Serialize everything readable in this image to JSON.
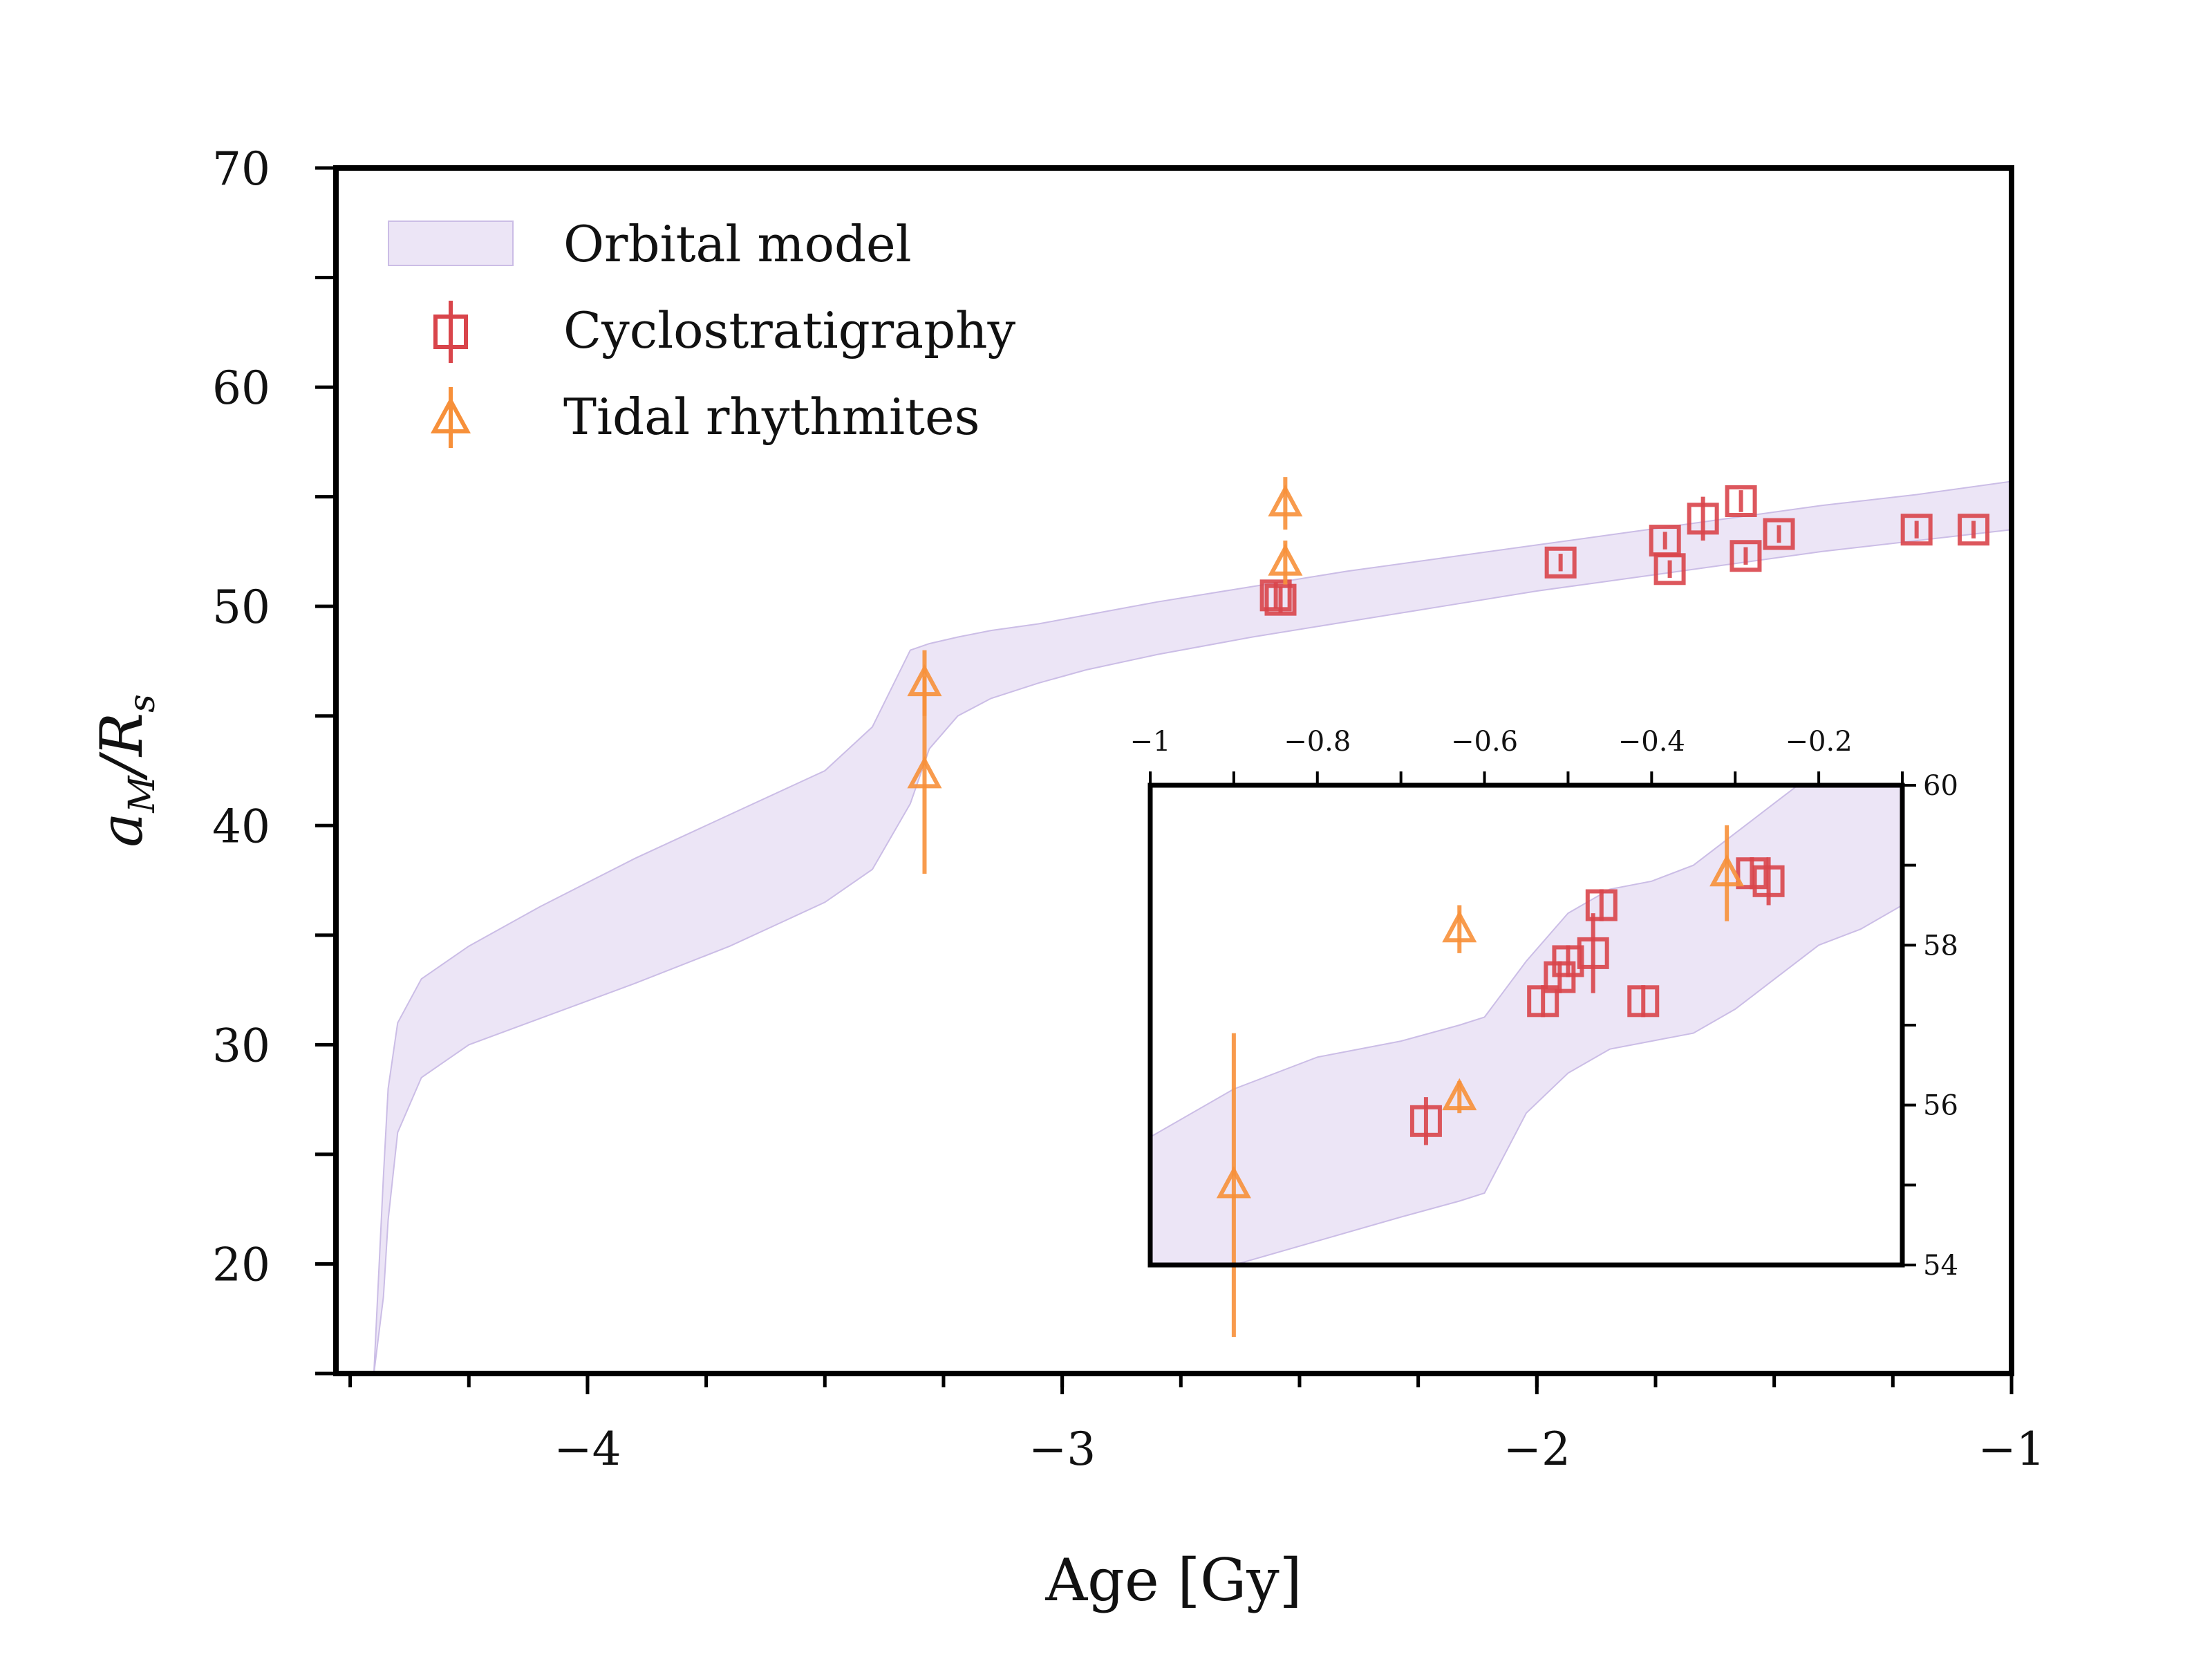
{
  "chart_data": {
    "type": "scatter",
    "xlabel": "Age [Gy]",
    "ylabel_main": "a",
    "ylabel_sub": "M",
    "ylabel_tail": "/R",
    "ylabel_tail_sub": "s",
    "xlim": [
      -4.53,
      -1.0
    ],
    "ylim": [
      15,
      70
    ],
    "x_ticks": [
      -4,
      -3,
      -2,
      -1
    ],
    "x_tick_labels": [
      "−4",
      "−3",
      "−2",
      "−1"
    ],
    "y_ticks": [
      20,
      30,
      40,
      50,
      60,
      70
    ],
    "y_tick_labels": [
      "20",
      "30",
      "40",
      "50",
      "60",
      "70"
    ],
    "x_minor_step": 0.25,
    "y_minor_step": 5,
    "colors": {
      "band": "#dcd0ee",
      "band_edge": "#cbbde6",
      "cyclo": "#d9454b",
      "tidal": "#f7903a",
      "axis": "#000000"
    },
    "legend": {
      "position": "upper-left",
      "entries": [
        {
          "label": "Orbital model",
          "kind": "band"
        },
        {
          "label": "Cyclostratigraphy",
          "kind": "cyclo"
        },
        {
          "label": "Tidal rhythmites",
          "kind": "tidal"
        }
      ]
    },
    "series": [
      {
        "name": "Orbital model",
        "kind": "band",
        "x": [
          -4.45,
          -4.43,
          -4.42,
          -4.4,
          -4.35,
          -4.25,
          -4.1,
          -3.9,
          -3.7,
          -3.5,
          -3.4,
          -3.32,
          -3.28,
          -3.22,
          -3.15,
          -3.05,
          -2.95,
          -2.8,
          -2.6,
          -2.4,
          -2.2,
          -2.0,
          -1.8,
          -1.6,
          -1.4,
          -1.2,
          -1.0
        ],
        "lower": [
          15.0,
          18.5,
          22.0,
          26.0,
          28.5,
          30.0,
          31.2,
          32.8,
          34.5,
          36.5,
          38.0,
          41.0,
          43.5,
          45.0,
          45.8,
          46.5,
          47.1,
          47.8,
          48.6,
          49.3,
          50.0,
          50.7,
          51.3,
          51.9,
          52.5,
          53.0,
          53.5
        ],
        "upper": [
          15.0,
          24.0,
          28.0,
          31.0,
          33.0,
          34.5,
          36.3,
          38.5,
          40.5,
          42.5,
          44.5,
          48.0,
          48.3,
          48.6,
          48.9,
          49.2,
          49.6,
          50.2,
          50.9,
          51.6,
          52.2,
          52.8,
          53.4,
          54.0,
          54.6,
          55.1,
          55.7
        ]
      },
      {
        "name": "Cyclostratigraphy",
        "kind": "cyclo",
        "points": [
          {
            "x": -2.55,
            "y": 50.5,
            "err": 0.6
          },
          {
            "x": -2.54,
            "y": 50.3,
            "err": 0.6
          },
          {
            "x": -1.95,
            "y": 52.0,
            "err": 0.4
          },
          {
            "x": -1.73,
            "y": 53.0,
            "err": 0.4
          },
          {
            "x": -1.72,
            "y": 51.7,
            "err": 0.4
          },
          {
            "x": -1.65,
            "y": 54.0,
            "err": 1.0
          },
          {
            "x": -1.57,
            "y": 54.8,
            "err": 0.5
          },
          {
            "x": -1.56,
            "y": 52.3,
            "err": 0.4
          },
          {
            "x": -1.49,
            "y": 53.3,
            "err": 0.4
          },
          {
            "x": -1.2,
            "y": 53.5,
            "err": 0.4
          },
          {
            "x": -1.08,
            "y": 53.5,
            "err": 0.4
          }
        ]
      },
      {
        "name": "Tidal rhythmites",
        "kind": "tidal",
        "points": [
          {
            "x": -3.29,
            "y": 46.5,
            "err": 1.5
          },
          {
            "x": -3.29,
            "y": 42.3,
            "err": 4.5
          },
          {
            "x": -2.53,
            "y": 54.7,
            "err": 1.2
          },
          {
            "x": -2.53,
            "y": 52.0,
            "err": 1.0
          }
        ]
      }
    ],
    "inset": {
      "xlim": [
        -1.0,
        -0.1
      ],
      "ylim": [
        54,
        60
      ],
      "x_ticks": [
        -1.0,
        -0.8,
        -0.6,
        -0.4,
        -0.2
      ],
      "x_tick_labels": [
        "−1",
        "−0.8",
        "−0.6",
        "−0.4",
        "−0.2"
      ],
      "y_ticks": [
        54,
        56,
        58,
        60
      ],
      "y_tick_labels": [
        "54",
        "56",
        "58",
        "60"
      ],
      "x_minor_step": 0.1,
      "y_minor_step": 1,
      "band": {
        "x": [
          -1.0,
          -0.9,
          -0.8,
          -0.7,
          -0.63,
          -0.6,
          -0.55,
          -0.5,
          -0.45,
          -0.4,
          -0.35,
          -0.3,
          -0.25,
          -0.2,
          -0.15,
          -0.1
        ],
        "lower": [
          53.6,
          54.0,
          54.3,
          54.6,
          54.8,
          54.9,
          55.9,
          56.4,
          56.7,
          56.8,
          56.9,
          57.2,
          57.6,
          58.0,
          58.2,
          58.5
        ],
        "upper": [
          55.6,
          56.2,
          56.6,
          56.8,
          57.0,
          57.1,
          57.8,
          58.4,
          58.7,
          58.8,
          59.0,
          59.4,
          59.8,
          60.2,
          60.5,
          60.8
        ]
      },
      "cyclo": [
        {
          "x": -0.67,
          "y": 55.8,
          "err": 0.3
        },
        {
          "x": -0.53,
          "y": 57.3,
          "err": 0.2
        },
        {
          "x": -0.51,
          "y": 57.6,
          "err": 0.2
        },
        {
          "x": -0.5,
          "y": 57.8,
          "err": 0.2
        },
        {
          "x": -0.47,
          "y": 57.9,
          "err": 0.5
        },
        {
          "x": -0.46,
          "y": 58.5,
          "err": 0.2
        },
        {
          "x": -0.41,
          "y": 57.3,
          "err": 0.2
        },
        {
          "x": -0.28,
          "y": 58.9,
          "err": 0.2
        },
        {
          "x": -0.26,
          "y": 58.8,
          "err": 0.3
        }
      ],
      "tidal": [
        {
          "x": -0.9,
          "y": 55.0,
          "err": 1.9
        },
        {
          "x": -0.63,
          "y": 58.2,
          "err": 0.3
        },
        {
          "x": -0.63,
          "y": 56.1,
          "err": 0.2
        },
        {
          "x": -0.31,
          "y": 58.9,
          "err": 0.6
        }
      ]
    }
  }
}
